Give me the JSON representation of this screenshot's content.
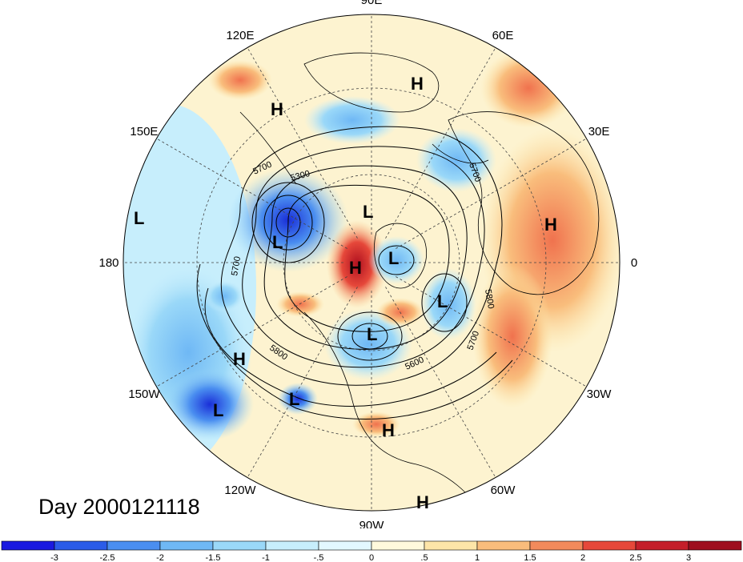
{
  "map": {
    "projection": "north-polar-stereographic",
    "longitude_labels": [
      {
        "text": "90E",
        "lon": 90
      },
      {
        "text": "60E",
        "lon": 60
      },
      {
        "text": "30E",
        "lon": 30
      },
      {
        "text": "0",
        "lon": 0
      },
      {
        "text": "30W",
        "lon": -30
      },
      {
        "text": "60W",
        "lon": -60
      },
      {
        "text": "90W",
        "lon": -90
      },
      {
        "text": "120W",
        "lon": -120
      },
      {
        "text": "150W",
        "lon": -150
      },
      {
        "text": "180",
        "lon": 180
      },
      {
        "text": "150E",
        "lon": 150
      },
      {
        "text": "120E",
        "lon": 120
      }
    ],
    "pressure_centers": [
      {
        "type": "H",
        "region": "west-siberia"
      },
      {
        "type": "H",
        "region": "east-siberia"
      },
      {
        "type": "L",
        "region": "north-pacific-date-line"
      },
      {
        "type": "L",
        "region": "east-siberian-sea"
      },
      {
        "type": "L",
        "region": "beaufort-sea"
      },
      {
        "type": "H",
        "region": "north-pole"
      },
      {
        "type": "L",
        "region": "arctic-archipelago"
      },
      {
        "type": "H",
        "region": "europe"
      },
      {
        "type": "L",
        "region": "greenland-atlantic"
      },
      {
        "type": "L",
        "region": "hudson-bay"
      },
      {
        "type": "H",
        "region": "gulf-of-alaska"
      },
      {
        "type": "L",
        "region": "northeast-pacific"
      },
      {
        "type": "L",
        "region": "central-pacific"
      },
      {
        "type": "H",
        "region": "gulf-of-mexico"
      },
      {
        "type": "H",
        "region": "south-america"
      }
    ],
    "contour_labels": [
      "5700",
      "5300",
      "5700",
      "5700",
      "5800",
      "5700",
      "5800",
      "5600"
    ],
    "colors": {
      "ocean_neutral": "#fdf3d0",
      "land_lines": "#000000"
    }
  },
  "title": "Day 2000121118",
  "colorbar": {
    "tick_labels": [
      "-3",
      "-2.5",
      "-2",
      "-1.5",
      "-1",
      "-.5",
      "0",
      ".5",
      "1",
      "1.5",
      "2",
      "2.5",
      "3"
    ],
    "colors": [
      "#1a1ae0",
      "#2b5ce8",
      "#4a8ef0",
      "#6fb8f5",
      "#9ad8f8",
      "#c7eefc",
      "#e3f8ff",
      "#fff9dc",
      "#fde5a8",
      "#f9bd7c",
      "#f28a5c",
      "#e6483a",
      "#c41f2a",
      "#9e0f1f"
    ]
  }
}
